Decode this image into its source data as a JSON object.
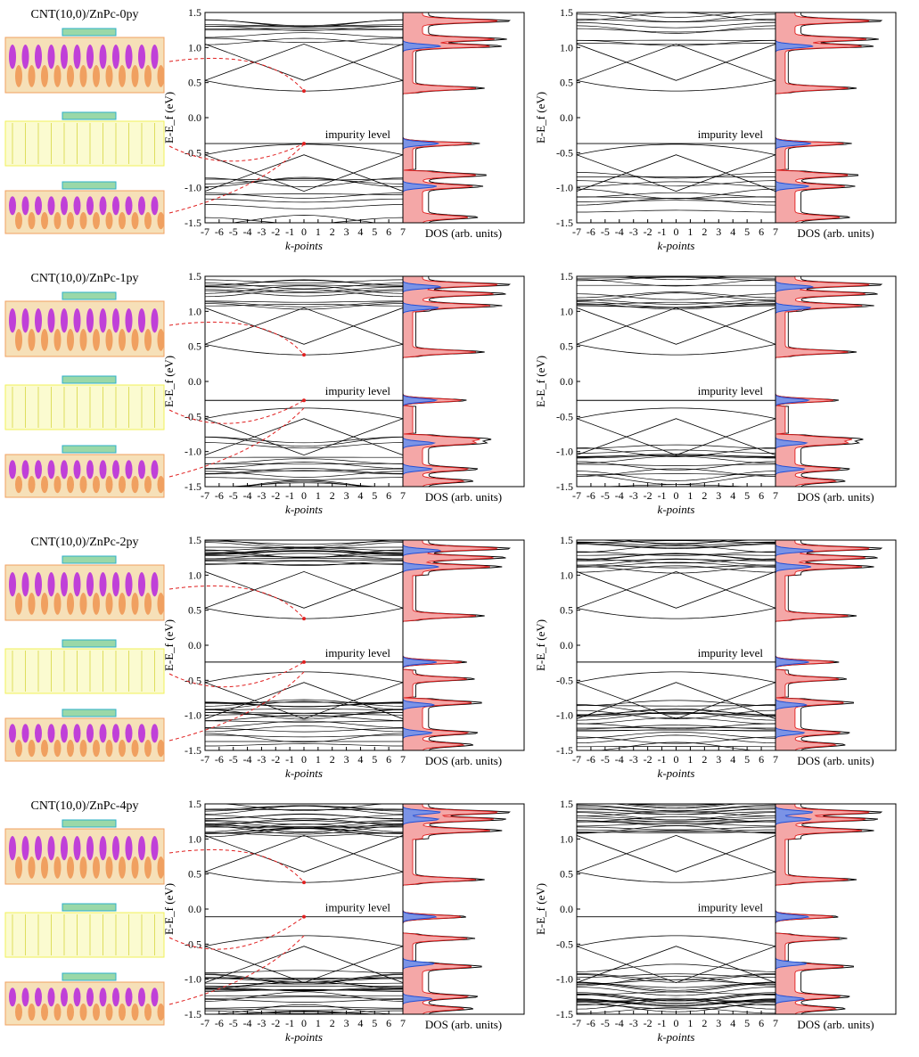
{
  "figure": {
    "xlabel": "k-points",
    "ylabel": "E-E_f (eV)",
    "dos_label": "DOS (arb. units)",
    "annotation": "impurity level",
    "yticks": [
      "1.5",
      "1.0",
      "0.5",
      "0.0",
      "-0.5",
      "-1.0",
      "-1.5"
    ],
    "xticks": [
      "-7",
      "-6",
      "-5",
      "-4",
      "-3",
      "-2",
      "-1",
      "0",
      "1",
      "2",
      "3",
      "4",
      "5",
      "6",
      "7"
    ],
    "colors": {
      "axis": "#000000",
      "band": "#000000",
      "pdos_red": "#f4a7a7",
      "pdos_red_line": "#e02020",
      "pdos_blue": "#7b93e6",
      "pdos_blue_line": "#1f4fd6",
      "arrow": "#e02020",
      "tube_yellow": "#f2f25a",
      "orb_purple": "#c040d8",
      "orb_orange": "#f0a060"
    }
  },
  "chart_data": [
    {
      "type": "line",
      "title": "CNT(10,0)/ZnPc-0py",
      "spin": "up",
      "xlabel": "k-points",
      "ylabel": "E-E_f (eV)",
      "xlim": [
        -7,
        7
      ],
      "ylim": [
        -1.5,
        1.5
      ],
      "impurity_level": -0.37,
      "cb_min": 0.38,
      "vb_max": -0.38,
      "band_crossings": [
        0.53,
        1.05
      ],
      "dos_peaks_red": [
        1.38,
        1.12,
        1.02,
        0.42,
        -0.37,
        -0.82,
        -0.98,
        -1.42
      ],
      "dos_peaks_blue": [
        1.02,
        -0.37,
        -0.98
      ]
    },
    {
      "type": "line",
      "title": "CNT(10,0)/ZnPc-0py",
      "spin": "down",
      "xlabel": "k-points",
      "ylabel": "E-E_f (eV)",
      "xlim": [
        -7,
        7
      ],
      "ylim": [
        -1.5,
        1.5
      ],
      "impurity_level": -0.37,
      "cb_min": 0.38,
      "vb_max": -0.38,
      "band_crossings": [
        0.53,
        1.05
      ],
      "dos_peaks_red": [
        1.38,
        1.12,
        1.02,
        0.42,
        -0.37,
        -0.82,
        -0.98,
        -1.42
      ],
      "dos_peaks_blue": [
        1.02,
        -0.37,
        -0.98
      ]
    },
    {
      "type": "line",
      "title": "CNT(10,0)/ZnPc-1py",
      "spin": "up",
      "xlabel": "k-points",
      "ylabel": "E-E_f (eV)",
      "xlim": [
        -7,
        7
      ],
      "ylim": [
        -1.5,
        1.5
      ],
      "impurity_level": -0.27,
      "cb_min": 0.38,
      "vb_max": -0.38,
      "band_crossings": [
        0.53,
        1.05
      ],
      "dos_peaks_red": [
        1.38,
        1.25,
        1.08,
        0.42,
        -0.27,
        -0.82,
        -0.88,
        -1.25,
        -1.42
      ],
      "dos_peaks_blue": [
        1.35,
        1.05,
        -0.27,
        -0.88,
        -1.25
      ]
    },
    {
      "type": "line",
      "title": "CNT(10,0)/ZnPc-1py",
      "spin": "down",
      "xlabel": "k-points",
      "ylabel": "E-E_f (eV)",
      "xlim": [
        -7,
        7
      ],
      "ylim": [
        -1.5,
        1.5
      ],
      "impurity_level": -0.27,
      "cb_min": 0.38,
      "vb_max": -0.38,
      "band_crossings": [
        0.53,
        1.05
      ],
      "dos_peaks_red": [
        1.38,
        1.25,
        1.08,
        0.42,
        -0.27,
        -0.82,
        -0.88,
        -1.25,
        -1.42
      ],
      "dos_peaks_blue": [
        1.35,
        1.05,
        -0.27,
        -0.88,
        -1.25
      ]
    },
    {
      "type": "line",
      "title": "CNT(10,0)/ZnPc-2py",
      "spin": "up",
      "xlabel": "k-points",
      "ylabel": "E-E_f (eV)",
      "xlim": [
        -7,
        7
      ],
      "ylim": [
        -1.5,
        1.5
      ],
      "impurity_level": -0.24,
      "cb_min": 0.38,
      "vb_max": -0.38,
      "band_crossings": [
        0.53,
        1.05
      ],
      "dos_peaks_red": [
        1.38,
        1.25,
        1.12,
        0.42,
        -0.24,
        -0.48,
        -0.82,
        -1.25,
        -1.42
      ],
      "dos_peaks_blue": [
        1.35,
        1.12,
        -0.24,
        -0.85,
        -1.25
      ]
    },
    {
      "type": "line",
      "title": "CNT(10,0)/ZnPc-2py",
      "spin": "down",
      "xlabel": "k-points",
      "ylabel": "E-E_f (eV)",
      "xlim": [
        -7,
        7
      ],
      "ylim": [
        -1.5,
        1.5
      ],
      "impurity_level": -0.24,
      "cb_min": 0.38,
      "vb_max": -0.38,
      "band_crossings": [
        0.53,
        1.05
      ],
      "dos_peaks_red": [
        1.38,
        1.25,
        1.12,
        0.42,
        -0.24,
        -0.48,
        -0.82,
        -1.25,
        -1.42
      ],
      "dos_peaks_blue": [
        1.35,
        1.12,
        -0.24,
        -0.85,
        -1.25
      ]
    },
    {
      "type": "line",
      "title": "CNT(10,0)/ZnPc-4py",
      "spin": "up",
      "xlabel": "k-points",
      "ylabel": "E-E_f (eV)",
      "xlim": [
        -7,
        7
      ],
      "ylim": [
        -1.5,
        1.5
      ],
      "impurity_level": -0.11,
      "cb_min": 0.38,
      "vb_max": -0.38,
      "band_crossings": [
        0.53,
        1.05
      ],
      "dos_peaks_red": [
        1.38,
        1.28,
        1.12,
        0.42,
        -0.11,
        -0.42,
        -0.82,
        -1.25,
        -1.42
      ],
      "dos_peaks_blue": [
        1.38,
        1.28,
        -0.11,
        -0.78,
        -1.28
      ]
    },
    {
      "type": "line",
      "title": "CNT(10,0)/ZnPc-4py",
      "spin": "down",
      "xlabel": "k-points",
      "ylabel": "E-E_f (eV)",
      "xlim": [
        -7,
        7
      ],
      "ylim": [
        -1.5,
        1.5
      ],
      "impurity_level": -0.11,
      "cb_min": 0.38,
      "vb_max": -0.38,
      "band_crossings": [
        0.53,
        1.05
      ],
      "dos_peaks_red": [
        1.38,
        1.28,
        1.12,
        0.42,
        -0.11,
        -0.42,
        -0.82,
        -1.25,
        -1.42
      ],
      "dos_peaks_blue": [
        1.38,
        1.28,
        -0.11,
        -0.78,
        -1.28
      ]
    }
  ]
}
